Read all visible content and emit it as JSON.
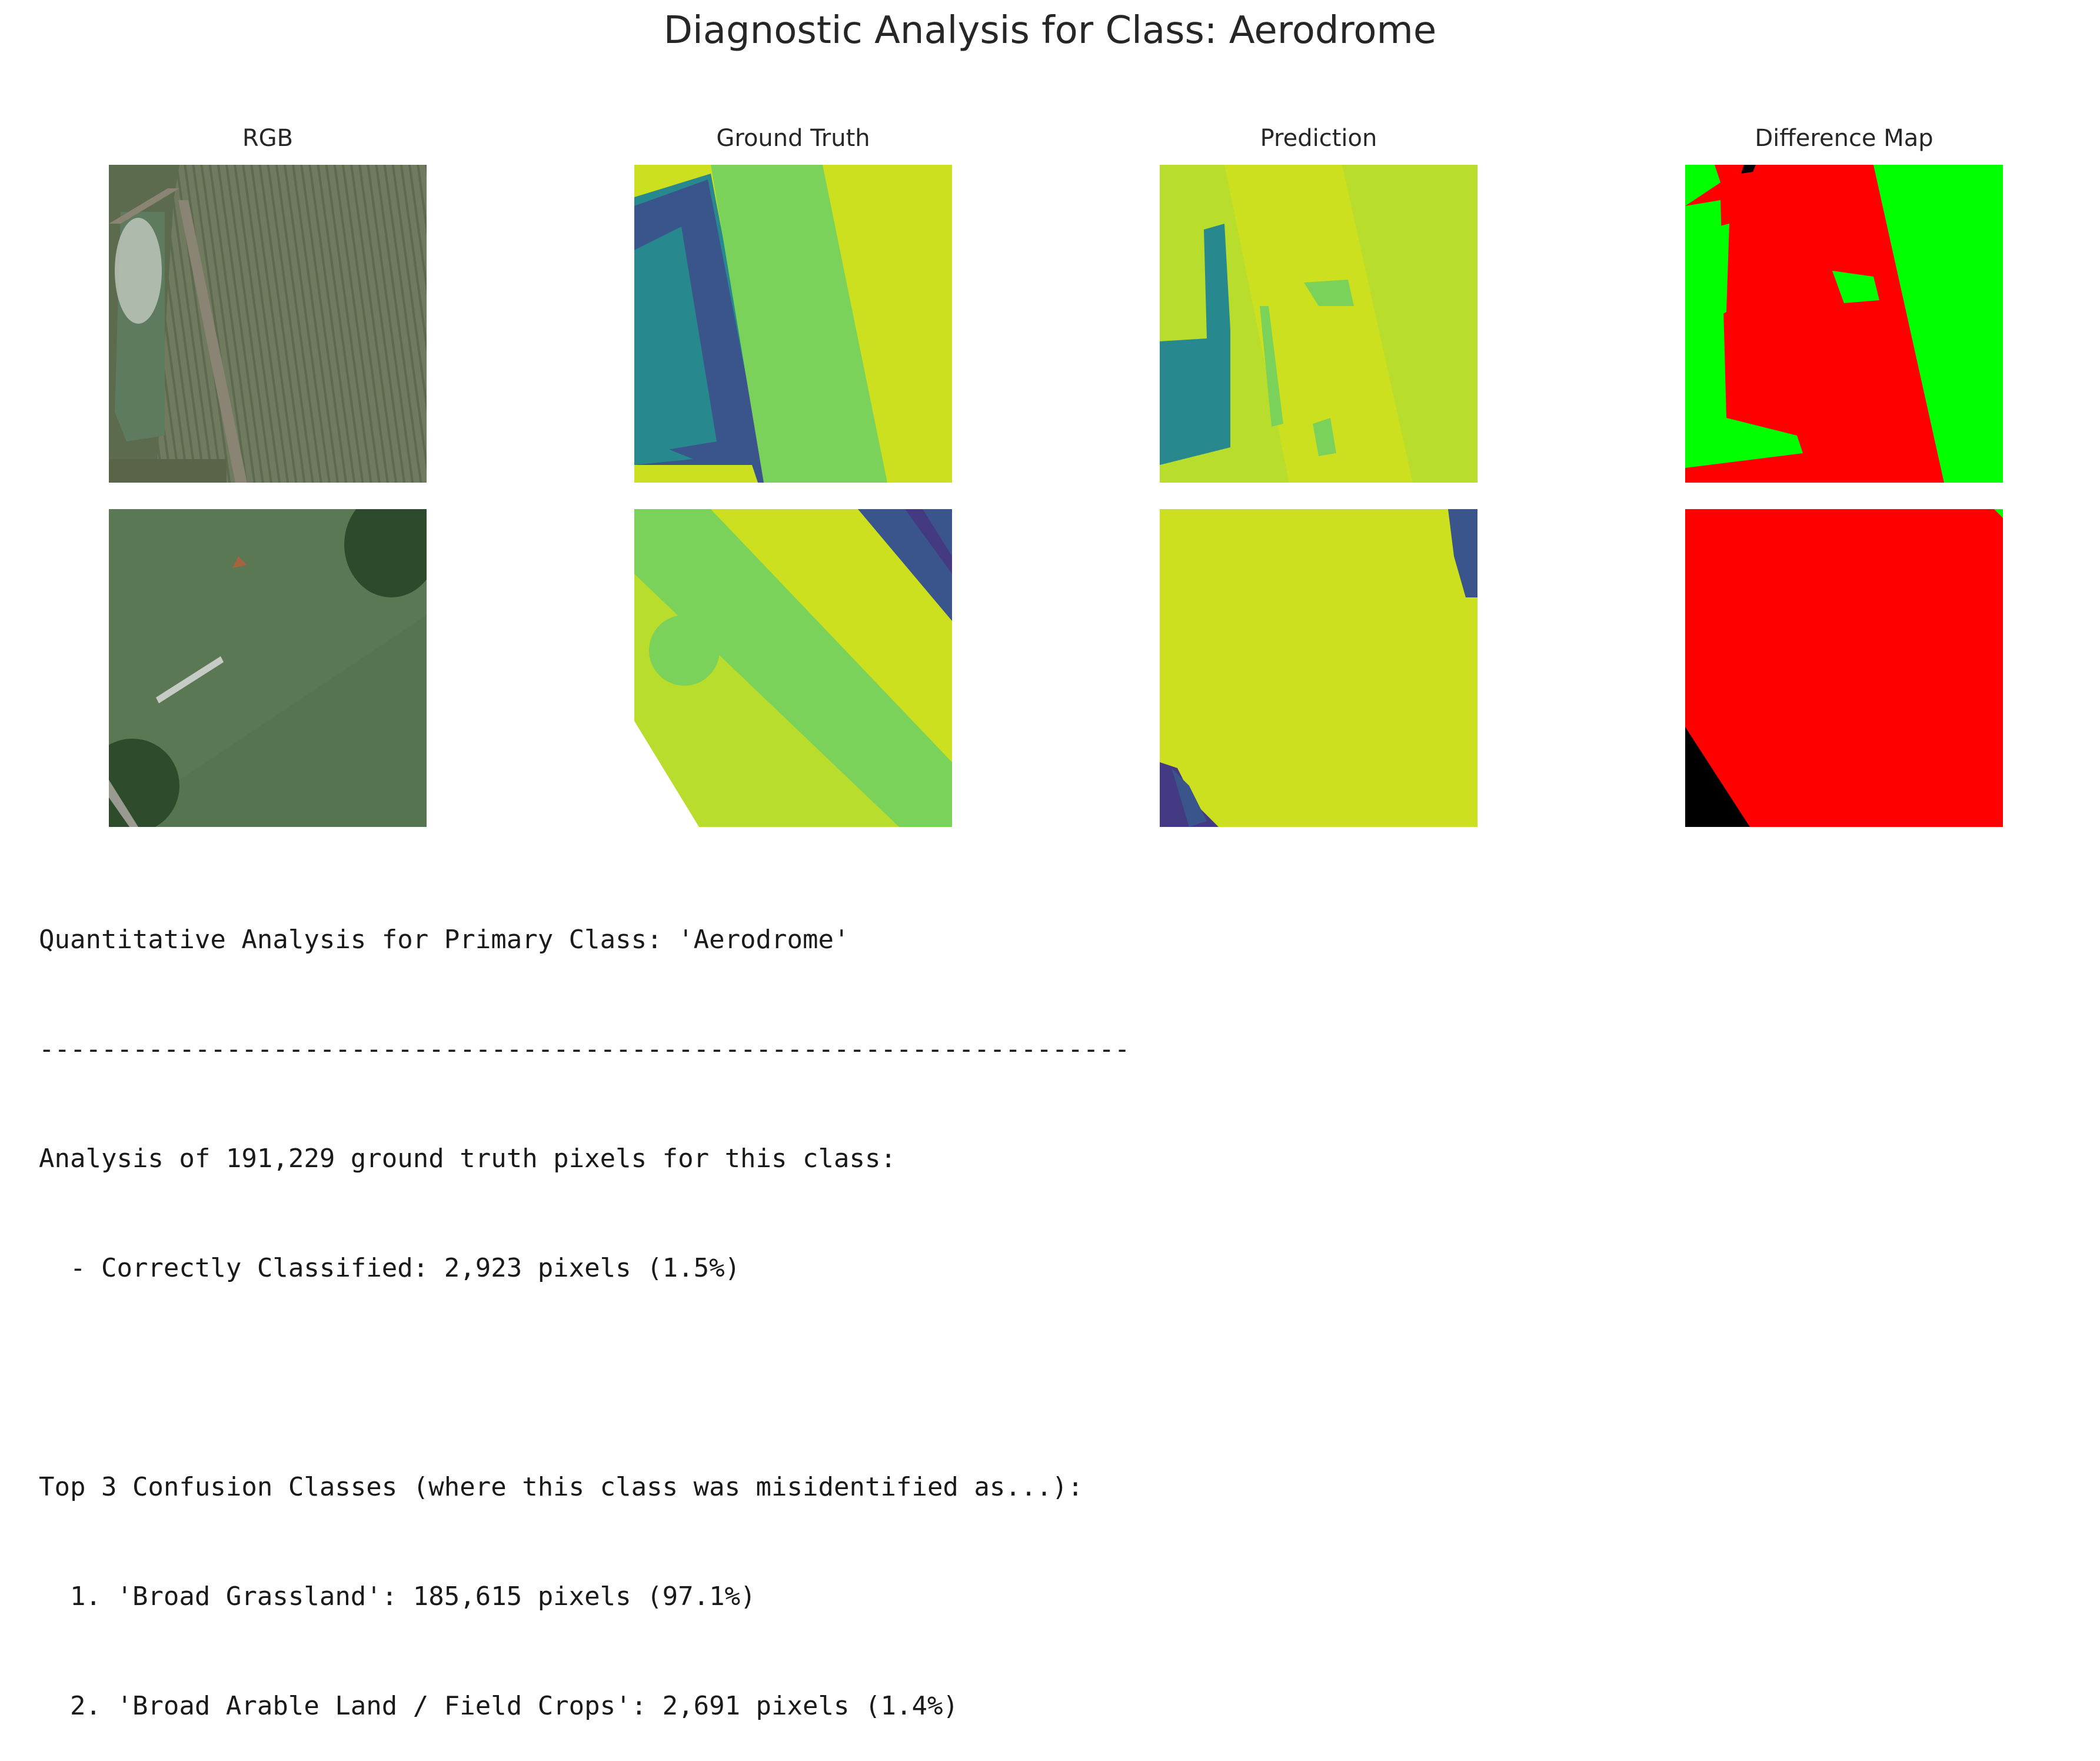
{
  "figure": {
    "title": "Diagnostic Analysis for Class: Aerodrome",
    "columns": [
      "RGB",
      "Ground Truth",
      "Prediction",
      "Difference Map"
    ]
  },
  "colors": {
    "diff_correct": "#00ff00",
    "diff_wrong": "#ff0000",
    "diff_ignore": "#000000",
    "seg_yellow": "#cde01f",
    "seg_lime": "#b9dd2c",
    "seg_green": "#7bd25a",
    "seg_teal": "#27888e",
    "seg_blue": "#3a558b",
    "seg_purple": "#443983"
  },
  "report": {
    "heading": "Quantitative Analysis for Primary Class: 'Aerodrome'",
    "divider": "----------------------------------------------------------------------",
    "summary": "Analysis of 191,229 ground truth pixels for this class:",
    "correct": "  - Correctly Classified: 2,923 pixels (1.5%)",
    "confusion_heading": "Top 3 Confusion Classes (where this class was misidentified as...):",
    "confusion": [
      "  1. 'Broad Grassland': 185,615 pixels (97.1%)",
      "  2. 'Broad Arable Land / Field Crops': 2,691 pixels (1.4%)"
    ]
  }
}
